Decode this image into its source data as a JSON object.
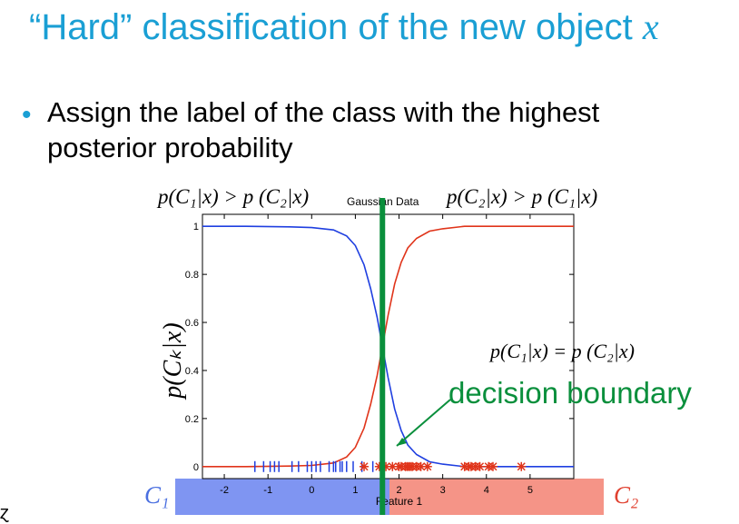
{
  "slide": {
    "title_prefix": "“Hard” classification of the new object ",
    "title_var": "x",
    "bullet": "Assign the label of the class with the highest posterior probability"
  },
  "annotations": {
    "left_condition": "p(C₁|x) > p (C₂|x)",
    "right_condition": "p(C₂|x) > p (C₁|x)",
    "equality": "p(C₁|x) = p (C₂|x)",
    "boundary_label": "decision boundary",
    "y_axis_label": "p(Cₖ|x)",
    "class1_label": "C₁",
    "class2_label": "C₂",
    "corner_mark": "ɀ"
  },
  "colors": {
    "title": "#1a9fd4",
    "class1_curve": "#1f3fe0",
    "class2_curve": "#e0341a",
    "boundary": "#0a8f3c",
    "class1_band": "#7f95f2",
    "class2_band": "#f59487"
  },
  "chart_data": {
    "type": "line",
    "title": "Gaussian Data",
    "xlabel": "Feature 1",
    "ylabel": "",
    "xlim": [
      -2.5,
      6.0
    ],
    "ylim": [
      -0.05,
      1.05
    ],
    "xticks": [
      -2,
      -1,
      0,
      1,
      2,
      3,
      4,
      5
    ],
    "yticks": [
      0,
      0.2,
      0.4,
      0.6,
      0.8,
      1
    ],
    "decision_boundary_x": 1.62,
    "series": [
      {
        "kind": "posterior",
        "x": [
          -2.5,
          -1.5,
          -0.5,
          0.0,
          0.5,
          0.8,
          1.0,
          1.2,
          1.35,
          1.5,
          1.62,
          1.75,
          1.9,
          2.05,
          2.2,
          2.4,
          2.7,
          3.0,
          3.5,
          4.5,
          6.0
        ],
        "values": [
          1.0,
          1.0,
          0.998,
          0.995,
          0.985,
          0.96,
          0.92,
          0.84,
          0.74,
          0.62,
          0.5,
          0.37,
          0.24,
          0.15,
          0.09,
          0.05,
          0.02,
          0.01,
          0.0,
          0.0,
          0.0
        ]
      },
      {
        "kind": "posterior",
        "x": [
          -2.5,
          -1.5,
          -0.5,
          0.0,
          0.5,
          0.8,
          1.0,
          1.2,
          1.35,
          1.5,
          1.62,
          1.75,
          1.9,
          2.05,
          2.2,
          2.4,
          2.7,
          3.0,
          3.5,
          4.5,
          6.0
        ],
        "values": [
          0.0,
          0.0,
          0.002,
          0.005,
          0.015,
          0.04,
          0.08,
          0.16,
          0.26,
          0.38,
          0.5,
          0.63,
          0.76,
          0.85,
          0.91,
          0.95,
          0.98,
          0.99,
          1.0,
          1.0,
          1.0
        ]
      }
    ],
    "points_class1": [
      -1.3,
      -1.1,
      -0.95,
      -0.85,
      -0.75,
      -0.45,
      -0.3,
      -0.1,
      0.0,
      0.1,
      0.2,
      0.4,
      0.5,
      0.55,
      0.65,
      0.7,
      0.8,
      0.95,
      1.15,
      1.4
    ],
    "points_class2": [
      1.2,
      1.55,
      1.7,
      1.85,
      2.0,
      2.05,
      2.15,
      2.2,
      2.25,
      2.3,
      2.4,
      2.5,
      2.65,
      3.5,
      3.6,
      3.65,
      3.75,
      3.85,
      4.05,
      4.15,
      4.8
    ]
  }
}
